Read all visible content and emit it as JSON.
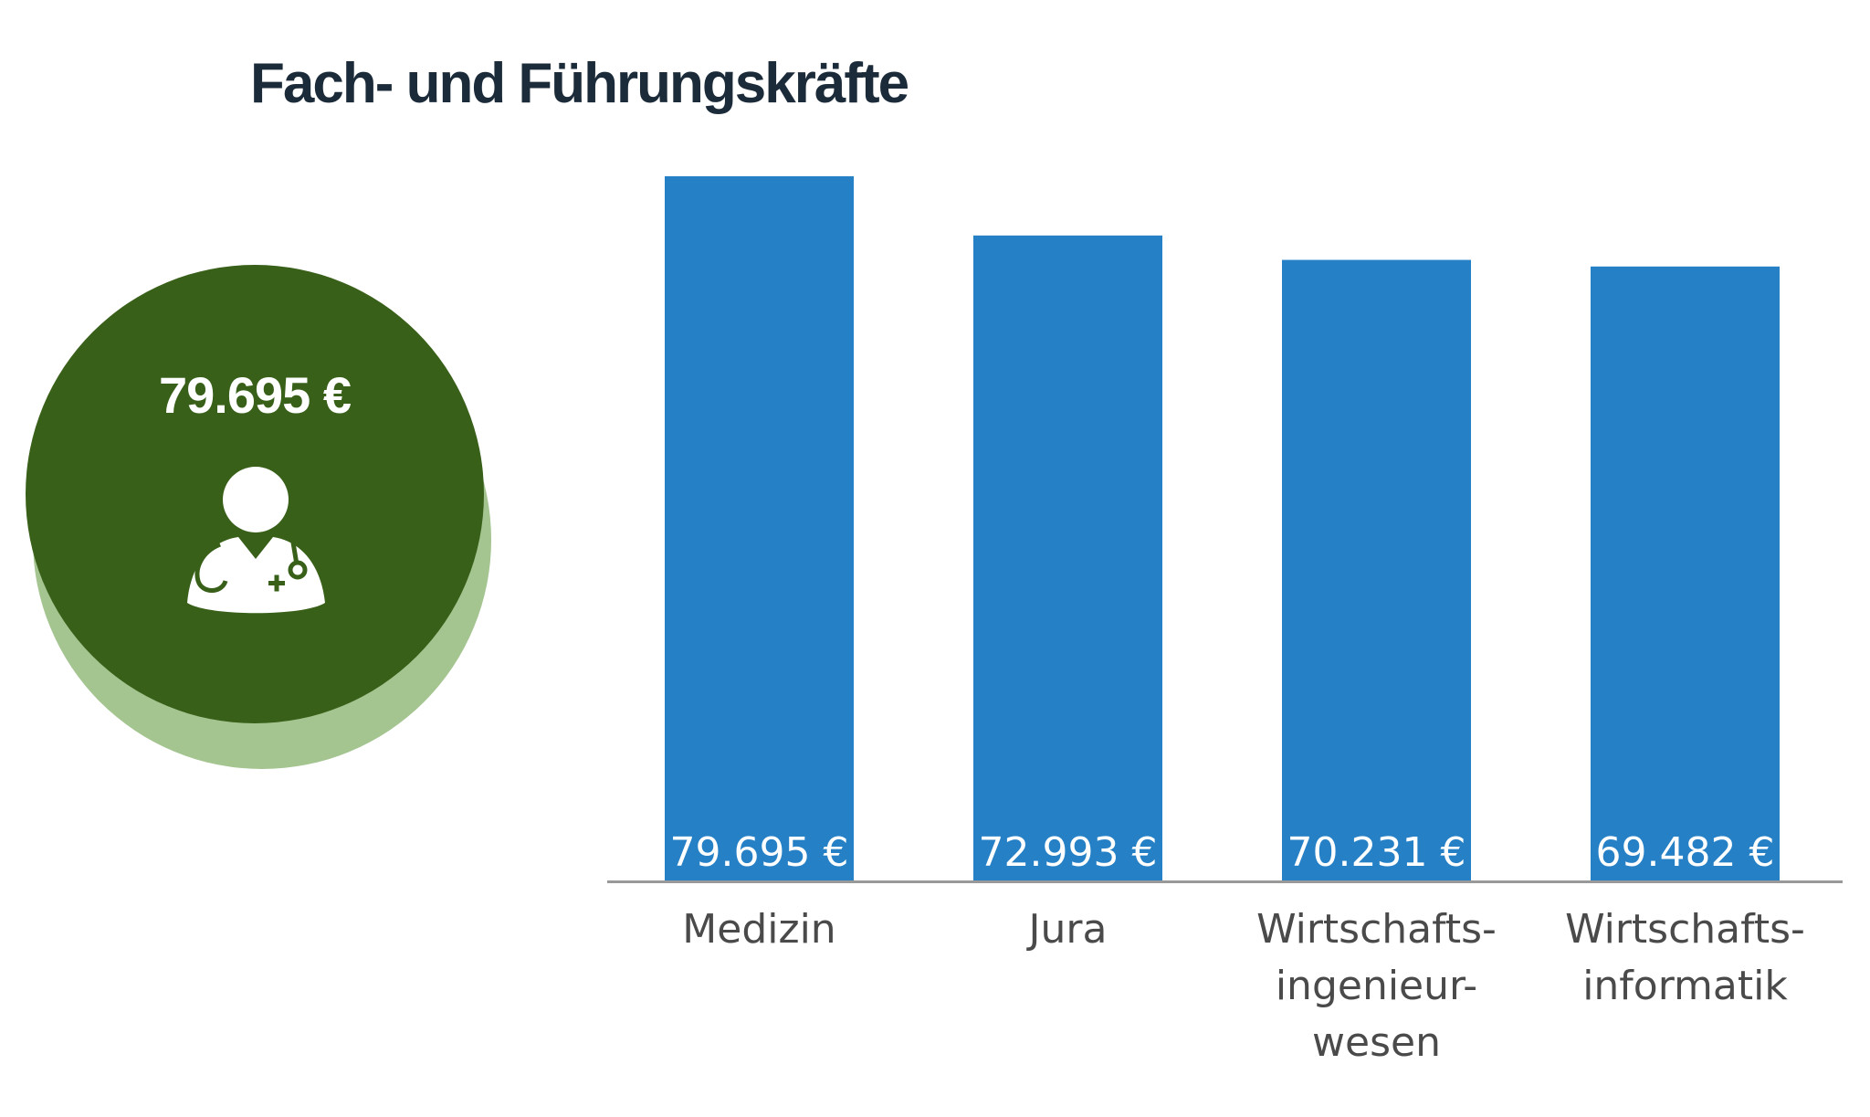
{
  "highlight": {
    "value_label": "79.695 €",
    "icon": "doctor-icon",
    "circle_color": "#386019",
    "shadow_color": "#a4c490"
  },
  "chart_data": {
    "type": "bar",
    "title": "Fach- und Führungskräfte",
    "categories": [
      [
        "Medizin"
      ],
      [
        "Jura"
      ],
      [
        "Wirtschafts-",
        "ingenieur-",
        "wesen"
      ],
      [
        "Wirtschafts-",
        "informatik"
      ]
    ],
    "values": [
      79695,
      72993,
      70231,
      69482
    ],
    "value_labels": [
      "79.695 €",
      "72.993 €",
      "70.231 €",
      "69.482 €"
    ],
    "bar_color": "#2680c6",
    "axis_color": "#999999",
    "ylim": [
      0,
      79695
    ],
    "grid": false,
    "legend": false
  }
}
